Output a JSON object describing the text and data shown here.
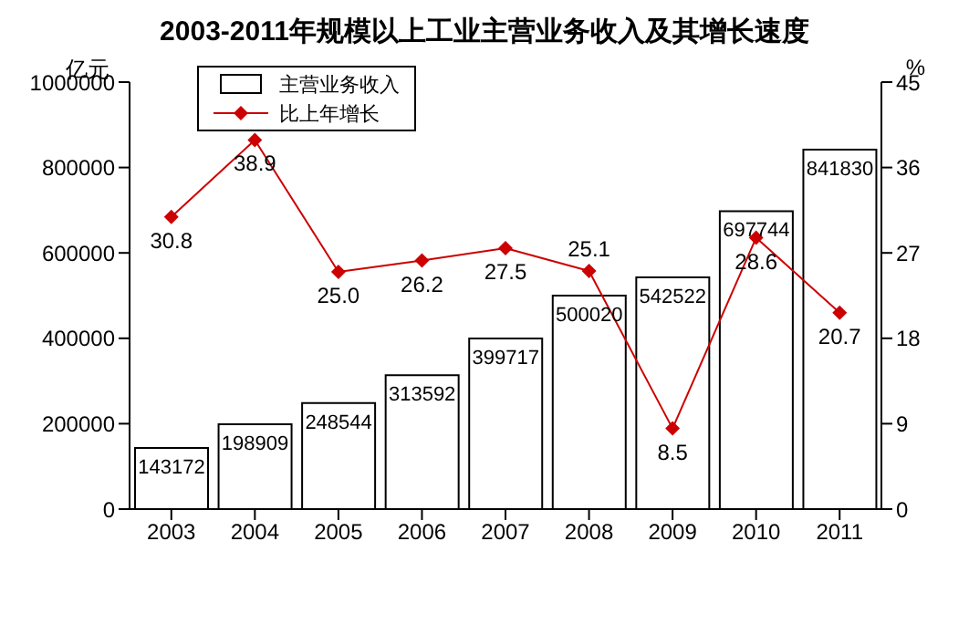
{
  "chart_data": {
    "type": "bar",
    "title": "2003-2011年规模以上工业主营业务收入及其增长速度",
    "ylabel": "亿元",
    "y2label": "%",
    "categories": [
      "2003",
      "2004",
      "2005",
      "2006",
      "2007",
      "2008",
      "2009",
      "2010",
      "2011"
    ],
    "series": [
      {
        "name": "主营业务收入",
        "color": "#ffffff",
        "values": [
          143172,
          198909,
          248544,
          313592,
          399717,
          500020,
          542522,
          697744,
          841830
        ],
        "value_labels": [
          "143172",
          "198909",
          "248544",
          "313592",
          "399717",
          "500020",
          "542522",
          "697744",
          "841830"
        ]
      },
      {
        "name": "比上年增长",
        "type": "line",
        "axis": "y2",
        "color": "#cc0000",
        "marker": "diamond",
        "values": [
          30.8,
          38.9,
          25.0,
          26.2,
          27.5,
          25.1,
          8.5,
          28.6,
          20.7
        ],
        "value_labels": [
          "30.8",
          "38.9",
          "25.0",
          "26.2",
          "27.5",
          "25.1",
          "8.5",
          "28.6",
          "20.7"
        ]
      }
    ],
    "ylim": [
      0,
      1000000
    ],
    "yticks": [
      0,
      200000,
      400000,
      600000,
      800000,
      1000000
    ],
    "y2lim": [
      0,
      45
    ],
    "y2ticks": [
      0,
      9,
      18,
      27,
      36,
      45
    ],
    "legend": "top left"
  }
}
